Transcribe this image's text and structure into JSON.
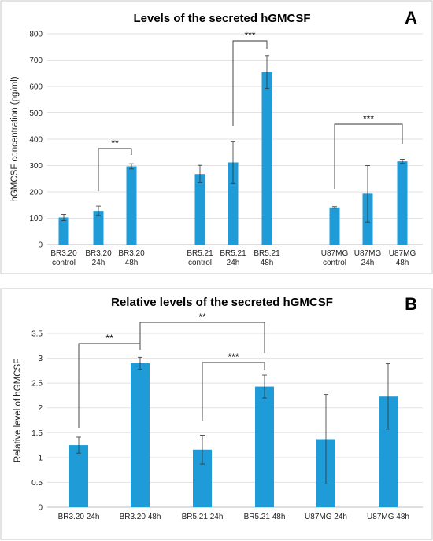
{
  "chart_data": [
    {
      "panel": "A",
      "type": "bar",
      "title": "Levels of the secreted hGMCSF",
      "ylabel": "hGMCSF concentration (pg/ml)",
      "ylim": [
        0,
        800
      ],
      "yticks": [
        0,
        100,
        200,
        300,
        400,
        500,
        600,
        700,
        800
      ],
      "grid": true,
      "color": "#1f9bd7",
      "categories": [
        [
          "BR3.20",
          "control"
        ],
        [
          "BR3.20",
          "24h"
        ],
        [
          "BR3.20",
          "48h"
        ],
        [
          "BR5.21",
          "control"
        ],
        [
          "BR5.21",
          "24h"
        ],
        [
          "BR5.21",
          "48h"
        ],
        [
          "U87MG",
          "control"
        ],
        [
          "U87MG",
          "24h"
        ],
        [
          "U87MG",
          "48h"
        ]
      ],
      "values": [
        103,
        128,
        297,
        268,
        312,
        655,
        141,
        193,
        316
      ],
      "errors": [
        12,
        18,
        10,
        33,
        80,
        62,
        3,
        107,
        8
      ],
      "significance": [
        {
          "from": 1,
          "to": 2,
          "label": "**"
        },
        {
          "from": 4,
          "to": 5,
          "label": "***"
        },
        {
          "from": 6,
          "to": 8,
          "label": "***"
        }
      ]
    },
    {
      "panel": "B",
      "type": "bar",
      "title": "Relative levels of the secreted hGMCSF",
      "ylabel": "Relative level of hGMCSF",
      "ylim": [
        0,
        3.5
      ],
      "yticks": [
        "0",
        "0.5",
        "1",
        "1.5",
        "2",
        "2.5",
        "3",
        "3.5"
      ],
      "grid": true,
      "color": "#1f9bd7",
      "categories": [
        "BR3.20 24h",
        "BR3.20 48h",
        "BR5.21 24h",
        "BR5.21 48h",
        "U87MG 24h",
        "U87MG 48h"
      ],
      "values": [
        1.25,
        2.9,
        1.16,
        2.43,
        1.37,
        2.23
      ],
      "errors": [
        0.16,
        0.12,
        0.29,
        0.23,
        0.9,
        0.66
      ],
      "significance": [
        {
          "from": 0,
          "to": 1,
          "label": "**"
        },
        {
          "from": 1,
          "to": 3,
          "label": "**"
        },
        {
          "from": 2,
          "to": 3,
          "label": "***"
        }
      ]
    }
  ]
}
